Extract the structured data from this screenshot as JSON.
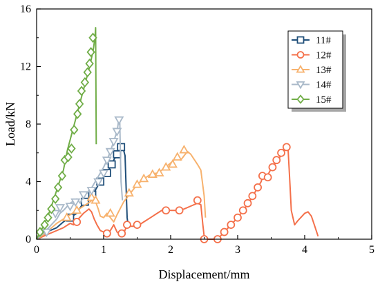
{
  "chart_data": {
    "type": "line",
    "xlabel": "Displacement/mm",
    "ylabel": "Load/kN",
    "xlim": [
      0,
      5
    ],
    "ylim": [
      0,
      16
    ],
    "xticks": [
      0,
      1,
      2,
      3,
      4,
      5
    ],
    "yticks": [
      0,
      4,
      8,
      12,
      16
    ],
    "grid": false,
    "legend": "top-right",
    "series": [
      {
        "name": "11#",
        "color": "#1f4e79",
        "marker": "square",
        "points": [
          [
            0.0,
            0.0
          ],
          [
            0.1,
            0.3
          ],
          [
            0.2,
            0.6
          ],
          [
            0.3,
            0.8
          ],
          [
            0.4,
            1.2
          ],
          [
            0.5,
            1.5
          ],
          [
            0.6,
            1.8
          ],
          [
            0.65,
            2.2
          ],
          [
            0.7,
            2.5
          ],
          [
            0.8,
            3.0
          ],
          [
            0.85,
            3.2
          ],
          [
            0.9,
            3.6
          ],
          [
            0.95,
            4.0
          ],
          [
            1.0,
            4.3
          ],
          [
            1.05,
            4.6
          ],
          [
            1.1,
            5.0
          ],
          [
            1.15,
            5.5
          ],
          [
            1.2,
            5.9
          ],
          [
            1.25,
            6.3
          ],
          [
            1.28,
            6.5
          ],
          [
            1.32,
            5.8
          ],
          [
            1.35,
            1.5
          ],
          [
            1.37,
            0.8
          ]
        ],
        "markers": [
          [
            0.5,
            1.5
          ],
          [
            0.72,
            2.6
          ],
          [
            0.83,
            3.1
          ],
          [
            0.95,
            4.0
          ],
          [
            1.05,
            4.6
          ],
          [
            1.12,
            5.2
          ],
          [
            1.2,
            5.9
          ],
          [
            1.26,
            6.4
          ]
        ]
      },
      {
        "name": "12#",
        "color": "#f4704a",
        "marker": "circle",
        "points": [
          [
            0.0,
            0.0
          ],
          [
            0.1,
            0.2
          ],
          [
            0.2,
            0.4
          ],
          [
            0.3,
            0.6
          ],
          [
            0.4,
            0.8
          ],
          [
            0.5,
            1.1
          ],
          [
            0.55,
            1.0
          ],
          [
            0.6,
            1.3
          ],
          [
            0.7,
            1.8
          ],
          [
            0.78,
            2.1
          ],
          [
            0.82,
            1.9
          ],
          [
            0.86,
            1.4
          ],
          [
            0.9,
            1.0
          ],
          [
            0.95,
            0.6
          ],
          [
            1.0,
            0.5
          ],
          [
            1.05,
            0.3
          ],
          [
            1.1,
            0.6
          ],
          [
            1.15,
            1.0
          ],
          [
            1.2,
            0.5
          ],
          [
            1.25,
            0.3
          ],
          [
            1.3,
            0.4
          ],
          [
            1.35,
            1.0
          ],
          [
            1.4,
            0.9
          ],
          [
            1.5,
            0.9
          ],
          [
            1.6,
            1.2
          ],
          [
            1.7,
            1.5
          ],
          [
            1.8,
            1.8
          ],
          [
            1.9,
            2.1
          ],
          [
            2.0,
            2.0
          ],
          [
            2.1,
            2.0
          ],
          [
            2.2,
            2.1
          ],
          [
            2.3,
            2.3
          ],
          [
            2.4,
            2.5
          ],
          [
            2.45,
            2.4
          ],
          [
            2.48,
            1.0
          ],
          [
            2.5,
            0.2
          ],
          [
            2.52,
            0.0
          ]
        ],
        "markers": [
          [
            0.6,
            1.2
          ],
          [
            1.05,
            0.4
          ],
          [
            1.27,
            0.4
          ],
          [
            1.35,
            1.0
          ],
          [
            1.5,
            1.0
          ],
          [
            1.93,
            2.0
          ],
          [
            2.13,
            2.0
          ],
          [
            2.4,
            2.7
          ],
          [
            2.5,
            0.0
          ],
          [
            2.7,
            0.0
          ],
          [
            2.8,
            0.5
          ],
          [
            2.9,
            1.0
          ],
          [
            3.0,
            1.5
          ],
          [
            3.08,
            2.0
          ],
          [
            3.15,
            2.5
          ],
          [
            3.22,
            3.0
          ],
          [
            3.3,
            3.6
          ],
          [
            3.37,
            4.4
          ],
          [
            3.45,
            4.3
          ],
          [
            3.52,
            5.0
          ],
          [
            3.58,
            5.5
          ],
          [
            3.65,
            6.0
          ],
          [
            3.73,
            6.4
          ]
        ],
        "points2": [
          [
            2.55,
            0.0
          ],
          [
            2.7,
            0.0
          ],
          [
            2.8,
            0.5
          ],
          [
            2.9,
            1.0
          ],
          [
            3.0,
            1.5
          ],
          [
            3.1,
            2.1
          ],
          [
            3.2,
            2.8
          ],
          [
            3.3,
            3.6
          ],
          [
            3.35,
            4.0
          ],
          [
            3.38,
            4.5
          ],
          [
            3.42,
            4.2
          ],
          [
            3.5,
            4.9
          ],
          [
            3.6,
            5.5
          ],
          [
            3.7,
            6.2
          ],
          [
            3.75,
            6.4
          ],
          [
            3.78,
            3.8
          ],
          [
            3.8,
            2.0
          ],
          [
            3.85,
            1.0
          ],
          [
            3.9,
            1.3
          ],
          [
            4.0,
            1.8
          ],
          [
            4.05,
            1.9
          ],
          [
            4.1,
            1.6
          ],
          [
            4.15,
            0.9
          ],
          [
            4.2,
            0.2
          ]
        ]
      },
      {
        "name": "13#",
        "color": "#f7b26e",
        "marker": "triangle-up",
        "points": [
          [
            0.0,
            0.0
          ],
          [
            0.1,
            0.3
          ],
          [
            0.2,
            0.7
          ],
          [
            0.3,
            1.1
          ],
          [
            0.4,
            1.4
          ],
          [
            0.5,
            1.7
          ],
          [
            0.6,
            2.0
          ],
          [
            0.7,
            2.3
          ],
          [
            0.8,
            2.6
          ],
          [
            0.85,
            2.8
          ],
          [
            0.88,
            2.6
          ],
          [
            0.92,
            2.1
          ],
          [
            0.95,
            1.6
          ],
          [
            1.0,
            1.5
          ],
          [
            1.05,
            1.8
          ],
          [
            1.1,
            1.5
          ],
          [
            1.15,
            1.2
          ],
          [
            1.2,
            1.7
          ],
          [
            1.3,
            2.6
          ],
          [
            1.4,
            3.2
          ],
          [
            1.5,
            3.8
          ],
          [
            1.6,
            4.2
          ],
          [
            1.7,
            4.5
          ],
          [
            1.8,
            4.6
          ],
          [
            1.9,
            4.9
          ],
          [
            2.0,
            5.3
          ],
          [
            2.1,
            5.7
          ],
          [
            2.15,
            5.5
          ],
          [
            2.25,
            6.1
          ],
          [
            2.3,
            5.9
          ],
          [
            2.4,
            5.2
          ],
          [
            2.45,
            4.8
          ],
          [
            2.5,
            3.0
          ],
          [
            2.52,
            1.5
          ]
        ],
        "markers": [
          [
            0.45,
            1.5
          ],
          [
            0.6,
            2.0
          ],
          [
            0.82,
            2.9
          ],
          [
            0.88,
            2.7
          ],
          [
            1.1,
            1.8
          ],
          [
            1.38,
            3.2
          ],
          [
            1.5,
            3.8
          ],
          [
            1.6,
            4.2
          ],
          [
            1.73,
            4.5
          ],
          [
            1.83,
            4.6
          ],
          [
            1.93,
            5.0
          ],
          [
            2.03,
            5.2
          ],
          [
            2.1,
            5.7
          ],
          [
            2.2,
            6.2
          ]
        ]
      },
      {
        "name": "14#",
        "color": "#a9b9c9",
        "marker": "triangle-down",
        "points": [
          [
            0.0,
            0.0
          ],
          [
            0.1,
            0.4
          ],
          [
            0.2,
            0.9
          ],
          [
            0.3,
            1.4
          ],
          [
            0.35,
            1.8
          ],
          [
            0.4,
            2.0
          ],
          [
            0.5,
            2.5
          ],
          [
            0.6,
            2.8
          ],
          [
            0.65,
            2.5
          ],
          [
            0.7,
            3.0
          ],
          [
            0.8,
            3.4
          ],
          [
            0.85,
            3.8
          ],
          [
            0.9,
            4.2
          ],
          [
            0.95,
            4.6
          ],
          [
            1.0,
            5.0
          ],
          [
            1.05,
            5.5
          ],
          [
            1.1,
            6.1
          ],
          [
            1.15,
            6.8
          ],
          [
            1.2,
            7.5
          ],
          [
            1.22,
            8.1
          ],
          [
            1.24,
            8.4
          ],
          [
            1.25,
            5.8
          ],
          [
            1.26,
            4.0
          ],
          [
            1.28,
            2.7
          ]
        ],
        "markers": [
          [
            0.15,
            0.5
          ],
          [
            0.28,
            1.8
          ],
          [
            0.35,
            2.2
          ],
          [
            0.5,
            2.3
          ],
          [
            0.58,
            2.6
          ],
          [
            0.7,
            3.1
          ],
          [
            0.82,
            3.4
          ],
          [
            0.92,
            4.0
          ],
          [
            1.0,
            4.6
          ],
          [
            1.05,
            5.5
          ],
          [
            1.1,
            6.1
          ],
          [
            1.15,
            6.8
          ],
          [
            1.2,
            7.5
          ],
          [
            1.23,
            8.3
          ]
        ]
      },
      {
        "name": "15#",
        "color": "#70ad47",
        "marker": "diamond",
        "points": [
          [
            0.0,
            0.0
          ],
          [
            0.05,
            0.5
          ],
          [
            0.1,
            0.9
          ],
          [
            0.15,
            1.4
          ],
          [
            0.2,
            2.0
          ],
          [
            0.25,
            2.7
          ],
          [
            0.3,
            3.4
          ],
          [
            0.35,
            4.1
          ],
          [
            0.4,
            4.8
          ],
          [
            0.43,
            5.5
          ],
          [
            0.46,
            6.2
          ],
          [
            0.5,
            6.9
          ],
          [
            0.54,
            7.6
          ],
          [
            0.58,
            8.3
          ],
          [
            0.62,
            9.0
          ],
          [
            0.66,
            9.7
          ],
          [
            0.7,
            10.4
          ],
          [
            0.74,
            11.1
          ],
          [
            0.78,
            11.8
          ],
          [
            0.82,
            12.6
          ],
          [
            0.85,
            13.3
          ],
          [
            0.87,
            14.0
          ],
          [
            0.88,
            14.7
          ],
          [
            0.885,
            11.0
          ],
          [
            0.89,
            6.6
          ]
        ],
        "markers": [
          [
            0.05,
            0.5
          ],
          [
            0.12,
            1.0
          ],
          [
            0.17,
            1.5
          ],
          [
            0.22,
            2.1
          ],
          [
            0.28,
            2.8
          ],
          [
            0.32,
            3.6
          ],
          [
            0.38,
            4.4
          ],
          [
            0.42,
            5.5
          ],
          [
            0.47,
            5.7
          ],
          [
            0.52,
            6.3
          ],
          [
            0.56,
            7.6
          ],
          [
            0.61,
            8.7
          ],
          [
            0.64,
            9.4
          ],
          [
            0.67,
            10.3
          ],
          [
            0.72,
            10.9
          ],
          [
            0.76,
            11.6
          ],
          [
            0.79,
            12.2
          ],
          [
            0.81,
            13.0
          ],
          [
            0.84,
            14.0
          ]
        ]
      }
    ]
  }
}
